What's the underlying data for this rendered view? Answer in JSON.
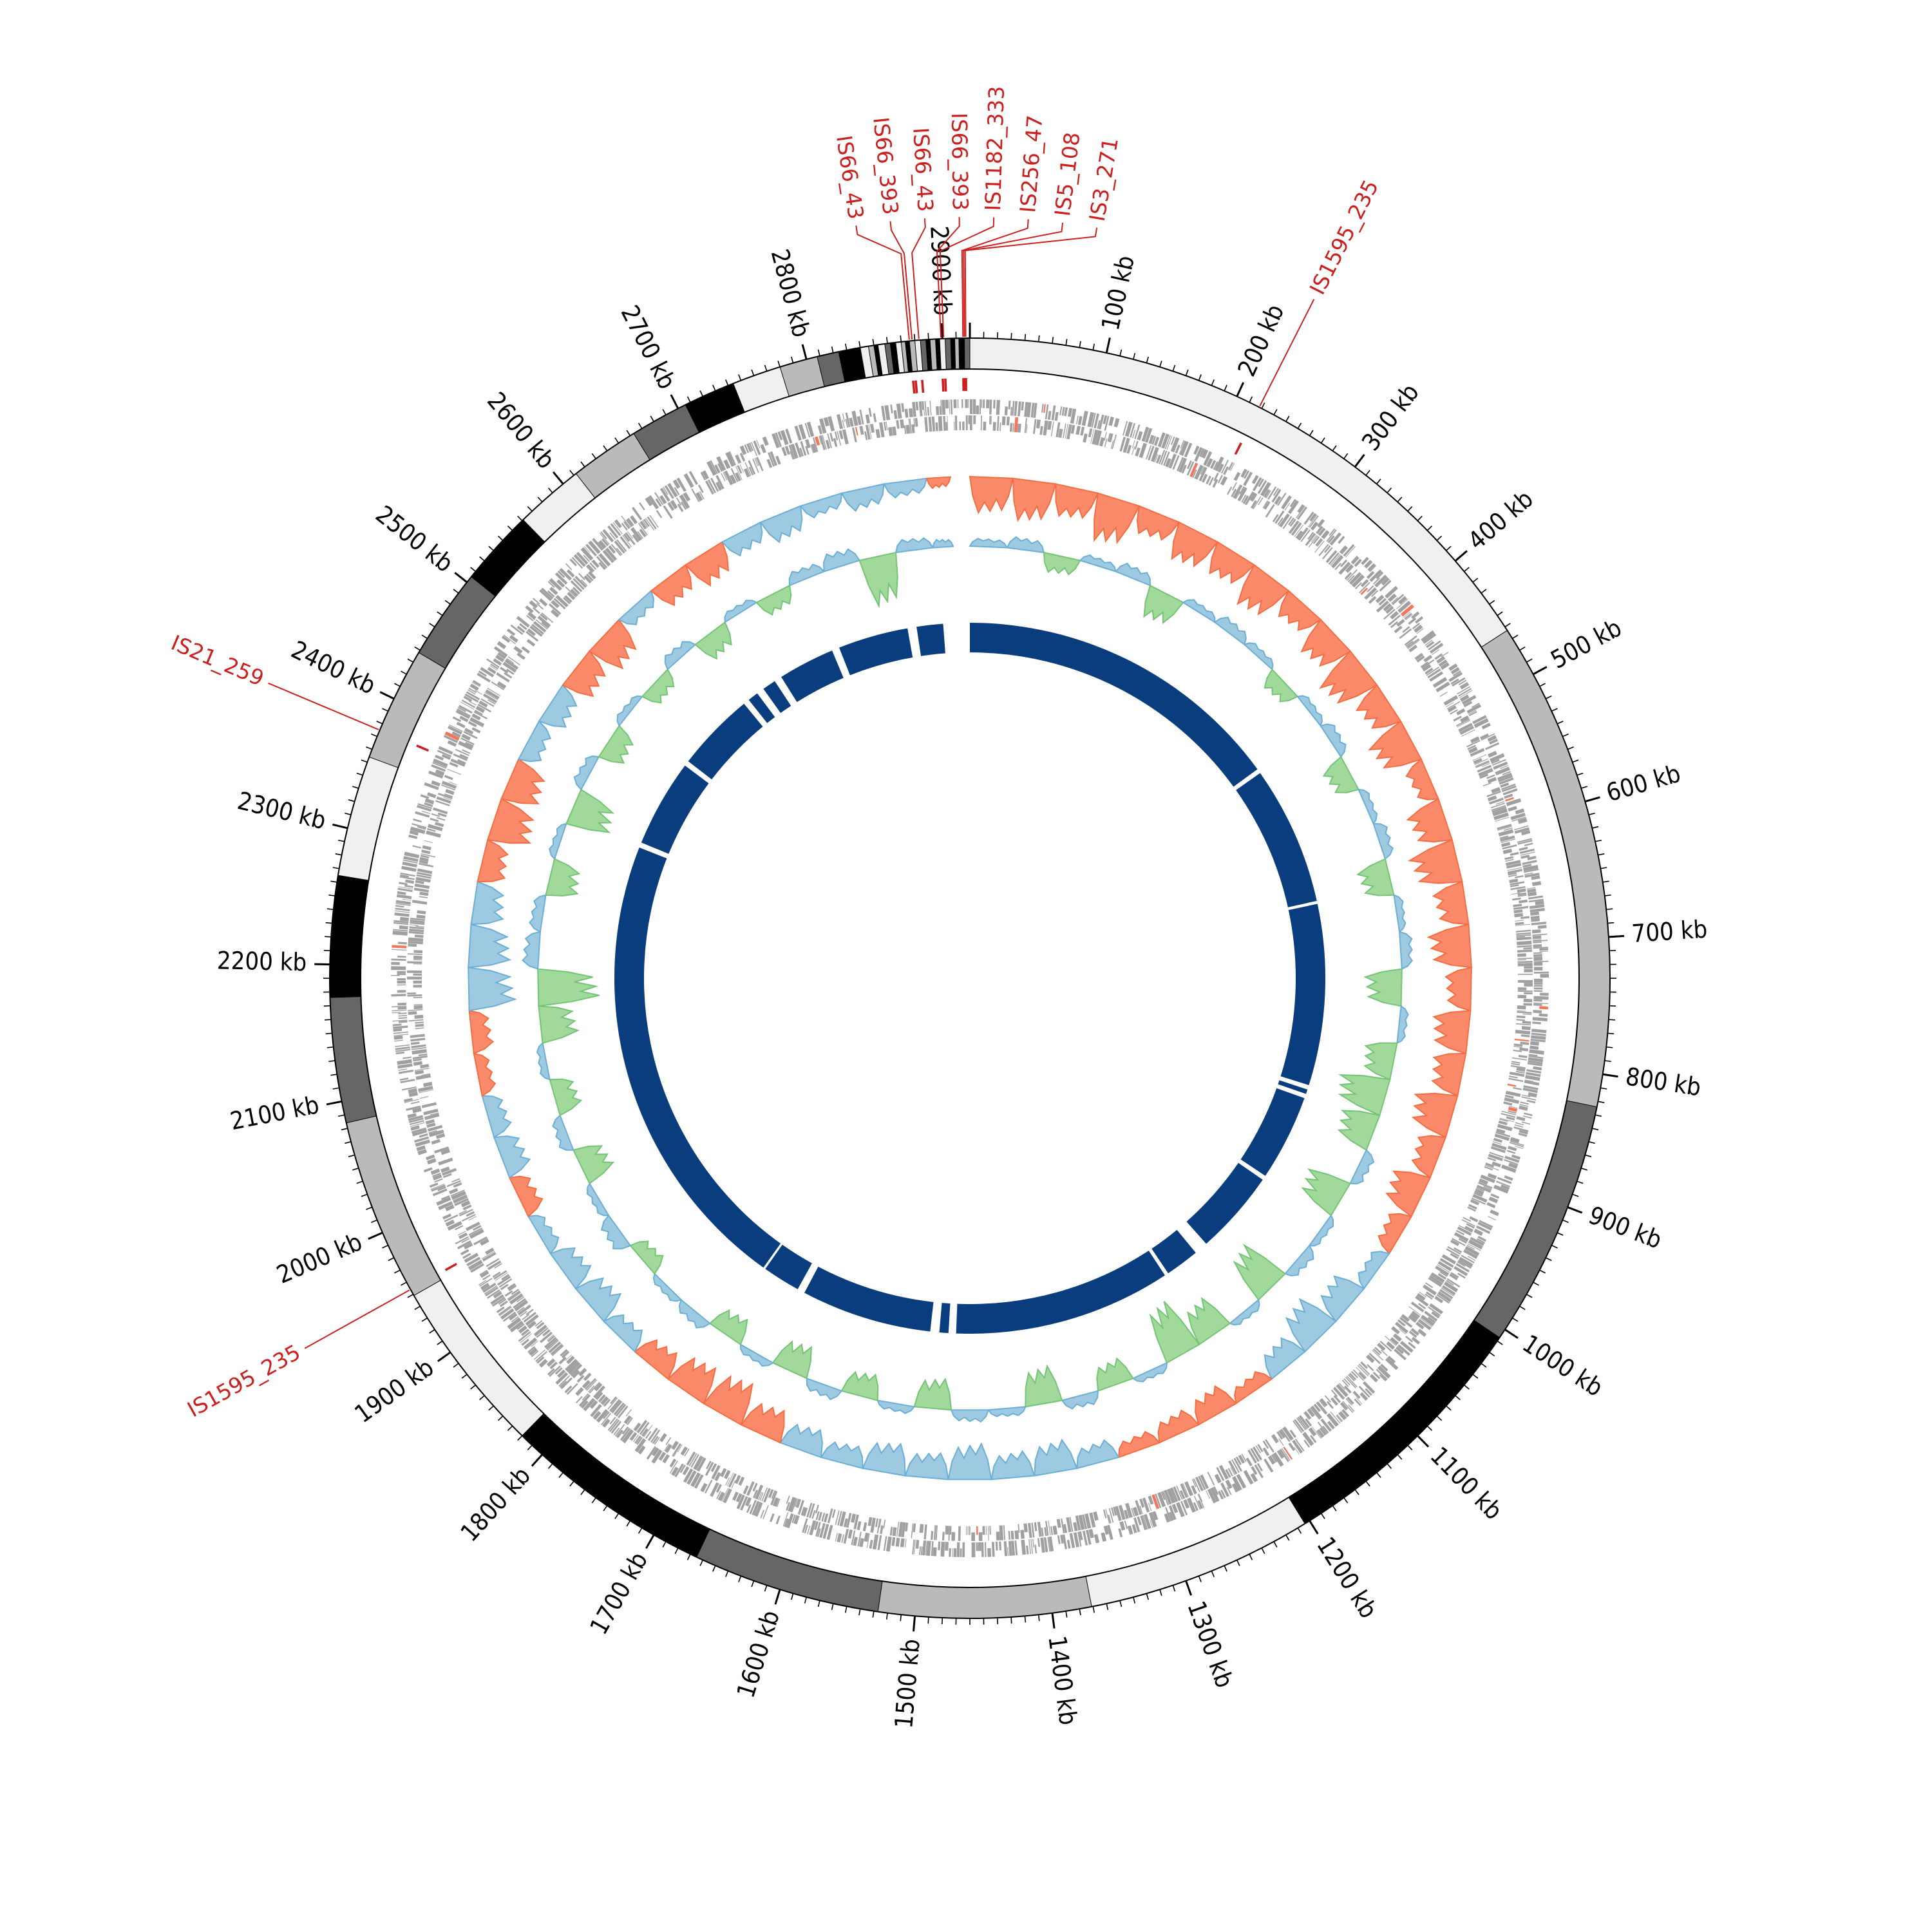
{
  "chart_data": {
    "type": "circular-genome",
    "title": "",
    "genome_length_kb": 2920,
    "axis": {
      "unit_suffix": "kb",
      "major_tick_kb": 100,
      "minor_tick_kb": 10,
      "tick_labels": [
        "100 kb",
        "200 kb",
        "300 kb",
        "400 kb",
        "500 kb",
        "600 kb",
        "700 kb",
        "800 kb",
        "900 kb",
        "1000 kb",
        "1100 kb",
        "1200 kb",
        "1300 kb",
        "1400 kb",
        "1500 kb",
        "1600 kb",
        "1700 kb",
        "1800 kb",
        "1900 kb",
        "2000 kb",
        "2100 kb",
        "2200 kb",
        "2300 kb",
        "2400 kb",
        "2500 kb",
        "2600 kb",
        "2700 kb",
        "2800 kb",
        "2900 kb"
      ]
    },
    "colors": {
      "band_light": "#f0f0f0",
      "band_gray": "#bababa",
      "band_dark": "#666666",
      "band_black": "#000000",
      "is_element": "#cc1f1f",
      "gene": "#a0a0a0",
      "skew_positive": "#fb8a6a",
      "skew_negative": "#9ecae1",
      "skew_line_negative": "#6baed6",
      "content_positive": "#9ecae1",
      "content_negative": "#a1d99b",
      "content_line_negative": "#74c476",
      "blocks": "#0a3d7e"
    },
    "karyotype_bands": [
      [
        0,
        463,
        "light"
      ],
      [
        463,
        824,
        "gray"
      ],
      [
        824,
        1007,
        "dark"
      ],
      [
        1007,
        1204,
        "black"
      ],
      [
        1204,
        1371,
        "light"
      ],
      [
        1371,
        1527,
        "gray"
      ],
      [
        1527,
        1665,
        "dark"
      ],
      [
        1665,
        1820,
        "black"
      ],
      [
        1820,
        1949,
        "light"
      ],
      [
        1949,
        2084,
        "gray"
      ],
      [
        2084,
        2176,
        "dark"
      ],
      [
        2176,
        2265,
        "black"
      ],
      [
        2265,
        2354,
        "light"
      ],
      [
        2354,
        2438,
        "gray"
      ],
      [
        2438,
        2505,
        "dark"
      ],
      [
        2505,
        2561,
        "black"
      ],
      [
        2561,
        2612,
        "light"
      ],
      [
        2612,
        2663,
        "gray"
      ],
      [
        2663,
        2706,
        "dark"
      ],
      [
        2706,
        2744,
        "black"
      ],
      [
        2744,
        2780,
        "light"
      ],
      [
        2780,
        2808,
        "gray"
      ],
      [
        2808,
        2824,
        "dark"
      ],
      [
        2824,
        2840,
        "black"
      ],
      [
        2840,
        2846,
        "light"
      ],
      [
        2846,
        2850,
        "gray"
      ],
      [
        2850,
        2853,
        "black"
      ],
      [
        2853,
        2858,
        "light"
      ],
      [
        2858,
        2862,
        "dark"
      ],
      [
        2862,
        2866,
        "black"
      ],
      [
        2866,
        2870,
        "light"
      ],
      [
        2870,
        2873,
        "gray"
      ],
      [
        2873,
        2876,
        "black"
      ],
      [
        2876,
        2880,
        "gray"
      ],
      [
        2880,
        2884,
        "light"
      ],
      [
        2884,
        2888,
        "dark"
      ],
      [
        2888,
        2891,
        "black"
      ],
      [
        2891,
        2895,
        "gray"
      ],
      [
        2895,
        2898,
        "black"
      ],
      [
        2898,
        2902,
        "light"
      ],
      [
        2902,
        2906,
        "dark"
      ],
      [
        2906,
        2909,
        "black"
      ],
      [
        2909,
        2912,
        "gray"
      ],
      [
        2912,
        2916,
        "black"
      ],
      [
        2916,
        2920,
        "dark"
      ]
    ],
    "is_elements": [
      {
        "label": "IS66_43",
        "position_kb": 2876,
        "group": "top"
      },
      {
        "label": "IS66_393",
        "position_kb": 2878,
        "group": "top"
      },
      {
        "label": "IS66_43",
        "position_kb": 2883,
        "group": "top"
      },
      {
        "label": "IS66_393",
        "position_kb": 2899,
        "group": "top"
      },
      {
        "label": "IS1182_333",
        "position_kb": 2901,
        "group": "top"
      },
      {
        "label": "IS256_47",
        "position_kb": 2915,
        "group": "top"
      },
      {
        "label": "IS5_108",
        "position_kb": 2916,
        "group": "top"
      },
      {
        "label": "IS3_271",
        "position_kb": 2917,
        "group": "top"
      },
      {
        "label": "IS1595_235",
        "position_kb": 218,
        "group": "single"
      },
      {
        "label": "IS21_259",
        "position_kb": 2375,
        "group": "single"
      },
      {
        "label": "IS1595_235",
        "position_kb": 1954,
        "group": "single"
      }
    ],
    "genes": {
      "note": "dense CDS features on both strands",
      "per_strand_approx": 1400
    },
    "gc_skew": {
      "window_kb": 40,
      "values": [
        0.7,
        0.8,
        0.6,
        0.9,
        0.5,
        0.7,
        0.6,
        0.8,
        0.5,
        0.7,
        0.9,
        0.6,
        0.8,
        0.4,
        0.7,
        0.9,
        0.6,
        0.8,
        0.5,
        0.7,
        0.6,
        0.8,
        0.5,
        0.7,
        0.4,
        -0.3,
        -0.6,
        -0.8,
        -0.5,
        0.3,
        0.5,
        0.4,
        0.3,
        -0.4,
        -0.6,
        -0.5,
        -0.7,
        -0.5,
        -0.6,
        -0.4,
        -0.5,
        0.6,
        0.8,
        0.7,
        0.5,
        -0.4,
        -0.6,
        -0.5,
        -0.3,
        0.4,
        -0.5,
        -0.4,
        0.3,
        0.4,
        -0.9,
        -0.8,
        -0.6,
        0.5,
        0.8,
        0.7,
        -0.4,
        -0.5,
        0.6,
        0.7,
        -0.3,
        0.5,
        0.6,
        -0.4,
        -0.5,
        -0.3,
        -0.4,
        -0.3,
        0.2
      ]
    },
    "gc_content": {
      "window_kb": 40,
      "values": [
        0.2,
        0.3,
        -0.3,
        0.2,
        0.3,
        -0.5,
        0.2,
        0.3,
        0.2,
        -0.3,
        0.2,
        0.3,
        -0.4,
        0.2,
        0.3,
        -0.5,
        0.2,
        0.3,
        -0.6,
        0.2,
        -0.5,
        -0.8,
        -0.6,
        0.3,
        -0.7,
        0.2,
        0.3,
        -0.8,
        0.2,
        -0.6,
        -0.9,
        0.2,
        -0.4,
        0.3,
        -0.6,
        0.2,
        0.3,
        -0.5,
        0.2,
        -0.4,
        0.3,
        -0.5,
        0.2,
        -0.4,
        0.3,
        0.2,
        -0.3,
        0.4,
        0.2,
        -0.5,
        0.3,
        -0.4,
        0.2,
        -0.6,
        -1.0,
        0.4,
        0.3,
        -0.5,
        0.2,
        -0.7,
        0.3,
        -0.4,
        0.2,
        -0.3,
        0.3,
        -0.4,
        0.2,
        -0.3,
        0.3,
        0.4,
        -0.8,
        0.3,
        0.2
      ]
    },
    "syntenic_blocks_kb": [
      [
        0,
        438
      ],
      [
        444,
        628
      ],
      [
        632,
        872
      ],
      [
        878,
        884
      ],
      [
        890,
        1004
      ],
      [
        1010,
        1122
      ],
      [
        1140,
        1185
      ],
      [
        1190,
        1478
      ],
      [
        1488,
        1500
      ],
      [
        1512,
        1685
      ],
      [
        1695,
        1745
      ],
      [
        1748,
        2365
      ],
      [
        2372,
        2488
      ],
      [
        2495,
        2600
      ],
      [
        2608,
        2622
      ],
      [
        2632,
        2650
      ],
      [
        2660,
        2735
      ],
      [
        2745,
        2838
      ],
      [
        2850,
        2885
      ]
    ]
  }
}
